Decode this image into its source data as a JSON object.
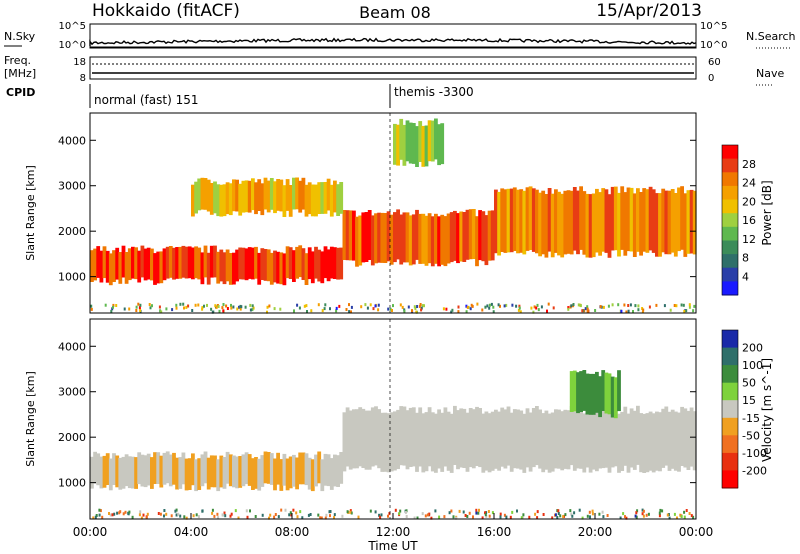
{
  "header": {
    "station": "Hokkaido (fitACF)",
    "beam": "Beam 08",
    "date": "15/Apr/2013"
  },
  "top_panels": {
    "nsky_label": "N.Sky",
    "nsearch_label": "N.Search",
    "nsky_ticks": [
      "10^5",
      "10^0"
    ],
    "nsearch_ticks": [
      "10^5",
      "10^0"
    ],
    "freq_label": "Freq.",
    "freq_unit": "[MHz]",
    "freq_ticks": [
      "18",
      "8"
    ],
    "nave_label": "Nave",
    "nave_ticks": [
      "60",
      "0"
    ],
    "cpid_label": "CPID",
    "cpid_segments": [
      {
        "label": "normal (fast) 151",
        "start_hour": 0
      },
      {
        "label": "themis -3300",
        "start_hour": 12
      }
    ]
  },
  "chart_data": [
    {
      "type": "heatmap",
      "panel": "power",
      "ylabel": "Slant Range [km]",
      "xlabel": "Time UT",
      "xlim": [
        0,
        24
      ],
      "ylim": [
        200,
        4600
      ],
      "x_ticks": [
        "00:00",
        "04:00",
        "08:00",
        "12:00",
        "16:00",
        "20:00",
        "00:00"
      ],
      "y_ticks": [
        1000,
        2000,
        3000,
        4000
      ],
      "colorbar": {
        "label": "Power [dB]",
        "ticks": [
          4,
          8,
          12,
          16,
          20,
          24,
          28
        ],
        "colors": [
          "#1a1aff",
          "#2a3fa8",
          "#2f6f6a",
          "#3c8c5a",
          "#5fb84f",
          "#9fd040",
          "#f0c000",
          "#f5a000",
          "#f07800",
          "#e83c14",
          "#ff0000"
        ]
      },
      "echo_bands": [
        {
          "range_km": [
            900,
            1600
          ],
          "hours": [
            0,
            10
          ],
          "level_db": 28
        },
        {
          "range_km": [
            1300,
            2400
          ],
          "hours": [
            10,
            16
          ],
          "level_db": 26
        },
        {
          "range_km": [
            1500,
            2900
          ],
          "hours": [
            16,
            24
          ],
          "level_db": 24
        },
        {
          "range_km": [
            2400,
            3100
          ],
          "hours": [
            4,
            10
          ],
          "level_db": 20
        },
        {
          "range_km": [
            3500,
            4400
          ],
          "hours": [
            12,
            14
          ],
          "level_db": 16
        }
      ]
    },
    {
      "type": "heatmap",
      "panel": "velocity",
      "ylabel": "Slant Range [km]",
      "xlabel": "Time UT",
      "xlim": [
        0,
        24
      ],
      "ylim": [
        200,
        4600
      ],
      "x_ticks": [
        "00:00",
        "04:00",
        "08:00",
        "12:00",
        "16:00",
        "20:00",
        "00:00"
      ],
      "y_ticks": [
        1000,
        2000,
        3000,
        4000
      ],
      "colorbar": {
        "label": "Velocity [m s^-1]",
        "ticks": [
          200,
          100,
          50,
          15,
          -15,
          -50,
          -100,
          -200
        ],
        "colors": [
          "#1a2aa8",
          "#2f6f6a",
          "#3c8c3c",
          "#7ed23c",
          "#c8c8c0",
          "#f0a020",
          "#f07020",
          "#e83010",
          "#ff0000"
        ]
      },
      "echo_bands": [
        {
          "range_km": [
            900,
            1600
          ],
          "hours": [
            0,
            10
          ],
          "velocity": -10
        },
        {
          "range_km": [
            1300,
            2600
          ],
          "hours": [
            10,
            24
          ],
          "velocity": 0
        },
        {
          "range_km": [
            2500,
            3400
          ],
          "hours": [
            19,
            21
          ],
          "velocity": 30
        }
      ]
    }
  ]
}
